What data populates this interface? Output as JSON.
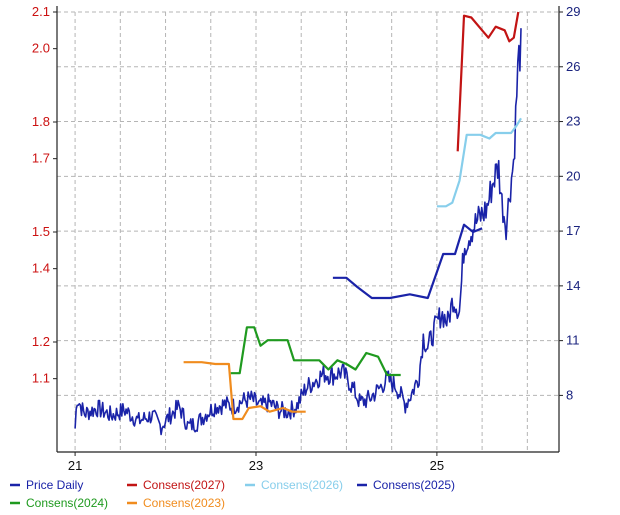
{
  "chart_data": {
    "type": "line",
    "title": "",
    "xlabel": "",
    "ylabel": "",
    "x_ticks": [
      {
        "label": "21",
        "x": 2021.0
      },
      {
        "label": "23",
        "x": 2023.0
      },
      {
        "label": "25",
        "x": 2025.0
      }
    ],
    "xlim": [
      2020.8,
      2026.35
    ],
    "left_axis": {
      "ylim": [
        0.9,
        2.1
      ],
      "ticks": [
        {
          "label": "2.1",
          "value": 2.1
        },
        {
          "label": "2.0",
          "value": 2.0
        },
        {
          "label": "1.8",
          "value": 1.8
        },
        {
          "label": "1.7",
          "value": 1.7
        },
        {
          "label": "1.5",
          "value": 1.5
        },
        {
          "label": "1.4",
          "value": 1.4
        },
        {
          "label": "1.2",
          "value": 1.2
        },
        {
          "label": "1.1",
          "value": 1.1
        }
      ]
    },
    "right_axis": {
      "ylim": [
        4.9,
        29
      ],
      "ticks": [
        {
          "label": "29",
          "value": 29
        },
        {
          "label": "26",
          "value": 26
        },
        {
          "label": "23",
          "value": 23
        },
        {
          "label": "20",
          "value": 20
        },
        {
          "label": "17",
          "value": 17
        },
        {
          "label": "14",
          "value": 14
        },
        {
          "label": "11",
          "value": 11
        },
        {
          "label": "8",
          "value": 8
        }
      ]
    },
    "grid": true,
    "legend_position": "bottom",
    "series": [
      {
        "name": "Price Daily",
        "color": "#1a23a8",
        "axis": "right",
        "style": "noisy",
        "points": [
          [
            2021.0,
            6.2
          ],
          [
            2021.02,
            7.9
          ],
          [
            2021.1,
            7.0
          ],
          [
            2021.25,
            7.3
          ],
          [
            2021.4,
            6.9
          ],
          [
            2021.55,
            7.2
          ],
          [
            2021.7,
            6.6
          ],
          [
            2021.85,
            6.9
          ],
          [
            2021.95,
            6.3
          ],
          [
            2022.05,
            6.9
          ],
          [
            2022.15,
            7.4
          ],
          [
            2022.25,
            6.3
          ],
          [
            2022.35,
            6.5
          ],
          [
            2022.45,
            7.0
          ],
          [
            2022.55,
            7.4
          ],
          [
            2022.65,
            7.5
          ],
          [
            2022.75,
            7.4
          ],
          [
            2022.85,
            7.7
          ],
          [
            2022.95,
            7.8
          ],
          [
            2023.05,
            7.4
          ],
          [
            2023.15,
            7.6
          ],
          [
            2023.25,
            7.2
          ],
          [
            2023.35,
            7.1
          ],
          [
            2023.45,
            7.4
          ],
          [
            2023.55,
            8.4
          ],
          [
            2023.65,
            8.8
          ],
          [
            2023.75,
            9.2
          ],
          [
            2023.85,
            9.1
          ],
          [
            2023.95,
            9.3
          ],
          [
            2024.05,
            8.6
          ],
          [
            2024.15,
            7.6
          ],
          [
            2024.25,
            7.8
          ],
          [
            2024.35,
            8.3
          ],
          [
            2024.45,
            8.9
          ],
          [
            2024.55,
            8.5
          ],
          [
            2024.65,
            7.5
          ],
          [
            2024.72,
            8.1
          ],
          [
            2024.8,
            9.0
          ],
          [
            2024.85,
            11.2
          ],
          [
            2024.9,
            10.6
          ],
          [
            2024.98,
            11.7
          ],
          [
            2025.05,
            12.5
          ],
          [
            2025.12,
            12.0
          ],
          [
            2025.18,
            13.3
          ],
          [
            2025.25,
            12.6
          ],
          [
            2025.3,
            16.2
          ],
          [
            2025.4,
            17.2
          ],
          [
            2025.45,
            17.6
          ],
          [
            2025.55,
            18.2
          ],
          [
            2025.62,
            19.7
          ],
          [
            2025.68,
            20.6
          ],
          [
            2025.72,
            18.5
          ],
          [
            2025.77,
            17.3
          ],
          [
            2025.8,
            19.0
          ],
          [
            2025.85,
            20.9
          ],
          [
            2025.9,
            26.4
          ],
          [
            2025.93,
            27.0
          ]
        ]
      },
      {
        "name": "Consens(2027)",
        "color": "#c21414",
        "axis": "left",
        "style": "smooth",
        "points": [
          [
            2025.23,
            1.72
          ],
          [
            2025.3,
            2.09
          ],
          [
            2025.38,
            2.085
          ],
          [
            2025.5,
            2.05
          ],
          [
            2025.57,
            2.03
          ],
          [
            2025.65,
            2.06
          ],
          [
            2025.75,
            2.05
          ],
          [
            2025.8,
            2.02
          ],
          [
            2025.85,
            2.03
          ],
          [
            2025.9,
            2.1
          ]
        ]
      },
      {
        "name": "Consens(2026)",
        "color": "#87ceeb",
        "axis": "left",
        "style": "smooth",
        "points": [
          [
            2025.0,
            1.57
          ],
          [
            2025.1,
            1.57
          ],
          [
            2025.17,
            1.58
          ],
          [
            2025.25,
            1.64
          ],
          [
            2025.33,
            1.765
          ],
          [
            2025.48,
            1.765
          ],
          [
            2025.58,
            1.755
          ],
          [
            2025.65,
            1.77
          ],
          [
            2025.82,
            1.77
          ],
          [
            2025.88,
            1.79
          ],
          [
            2025.93,
            1.81
          ]
        ]
      },
      {
        "name": "Consens(2025)",
        "color": "#1a23a8",
        "axis": "left",
        "style": "smooth",
        "points": [
          [
            2023.85,
            1.375
          ],
          [
            2024.0,
            1.375
          ],
          [
            2024.12,
            1.35
          ],
          [
            2024.28,
            1.32
          ],
          [
            2024.48,
            1.32
          ],
          [
            2024.7,
            1.33
          ],
          [
            2024.9,
            1.32
          ],
          [
            2025.07,
            1.44
          ],
          [
            2025.2,
            1.44
          ],
          [
            2025.3,
            1.52
          ],
          [
            2025.4,
            1.5
          ],
          [
            2025.5,
            1.51
          ]
        ]
      },
      {
        "name": "Consens(2024)",
        "color": "#1f9a1f",
        "axis": "left",
        "style": "smooth",
        "points": [
          [
            2022.72,
            1.115
          ],
          [
            2022.82,
            1.115
          ],
          [
            2022.9,
            1.24
          ],
          [
            2022.98,
            1.24
          ],
          [
            2023.05,
            1.19
          ],
          [
            2023.13,
            1.205
          ],
          [
            2023.35,
            1.205
          ],
          [
            2023.42,
            1.15
          ],
          [
            2023.7,
            1.15
          ],
          [
            2023.8,
            1.125
          ],
          [
            2023.9,
            1.15
          ],
          [
            2024.0,
            1.14
          ],
          [
            2024.1,
            1.125
          ],
          [
            2024.22,
            1.17
          ],
          [
            2024.35,
            1.16
          ],
          [
            2024.45,
            1.11
          ],
          [
            2024.6,
            1.11
          ]
        ]
      },
      {
        "name": "Consens(2023)",
        "color": "#f08c1e",
        "axis": "left",
        "style": "smooth",
        "points": [
          [
            2022.2,
            1.145
          ],
          [
            2022.4,
            1.145
          ],
          [
            2022.55,
            1.14
          ],
          [
            2022.7,
            1.14
          ],
          [
            2022.75,
            0.99
          ],
          [
            2022.85,
            0.99
          ],
          [
            2022.92,
            1.02
          ],
          [
            2023.05,
            1.025
          ],
          [
            2023.15,
            1.01
          ],
          [
            2023.3,
            1.02
          ],
          [
            2023.4,
            1.01
          ],
          [
            2023.55,
            1.01
          ]
        ]
      }
    ]
  }
}
